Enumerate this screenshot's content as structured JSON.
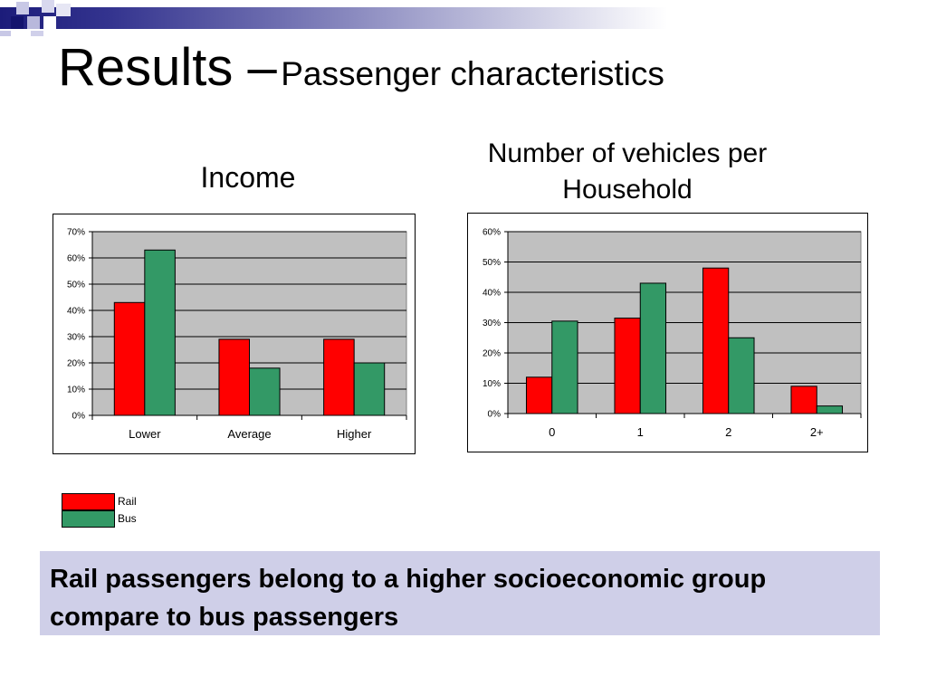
{
  "slide": {
    "title_main": "Results –",
    "title_sub": "Passenger characteristics",
    "conclusion": "Rail passengers belong to a higher socioeconomic group compare to bus passengers"
  },
  "colors": {
    "rail": "#ff0000",
    "bus": "#339966",
    "plot_bg": "#c0c0c0",
    "banner_bg": "#cfcfe8",
    "header_blue": "#1c1c7a"
  },
  "legend": [
    {
      "name": "Rail",
      "color": "#ff0000"
    },
    {
      "name": "Bus",
      "color": "#339966"
    }
  ],
  "chart_data": [
    {
      "type": "bar",
      "title": "Income",
      "categories": [
        "Lower",
        "Average",
        "Higher"
      ],
      "series": [
        {
          "name": "Rail",
          "values": [
            43,
            29,
            29
          ]
        },
        {
          "name": "Bus",
          "values": [
            63,
            18,
            20
          ]
        }
      ],
      "yticks": [
        "0%",
        "10%",
        "20%",
        "30%",
        "40%",
        "50%",
        "60%",
        "70%"
      ],
      "ylim": [
        0,
        70
      ],
      "grid": true
    },
    {
      "type": "bar",
      "title": "Number of vehicles per Household",
      "categories": [
        "0",
        "1",
        "2",
        "2+"
      ],
      "series": [
        {
          "name": "Rail",
          "values": [
            12,
            31.5,
            48,
            9
          ]
        },
        {
          "name": "Bus",
          "values": [
            30.5,
            43,
            25,
            2.5
          ]
        }
      ],
      "yticks": [
        "0%",
        "10%",
        "20%",
        "30%",
        "40%",
        "50%",
        "60%"
      ],
      "ylim": [
        0,
        60
      ],
      "grid": true
    }
  ]
}
